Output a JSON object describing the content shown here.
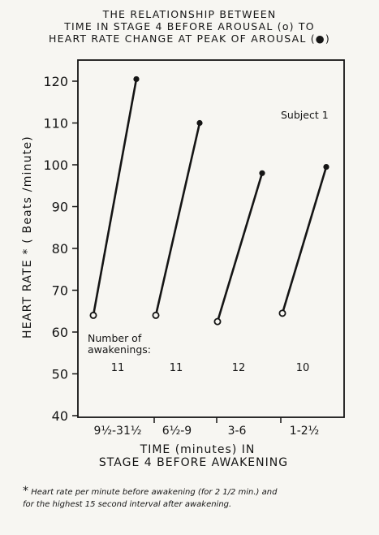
{
  "chart_data": {
    "type": "line",
    "title": "THE RELATIONSHIP BETWEEN TIME IN STAGE 4 BEFORE AROUSAL (o) TO HEART RATE CHANGE AT PEAK OF AROUSAL (●)",
    "title_lines": [
      "THE RELATIONSHIP BETWEEN",
      "TIME IN STAGE 4 BEFORE AROUSAL (o) TO",
      "HEART RATE CHANGE AT PEAK OF AROUSAL (●)"
    ],
    "xlabel_lines": [
      "TIME (minutes) IN",
      "STAGE 4 BEFORE AWAKENING"
    ],
    "ylabel": "HEART RATE * ( Beats /minute)",
    "ylim": [
      40,
      125
    ],
    "yticks": [
      40,
      50,
      60,
      70,
      80,
      90,
      100,
      110,
      120
    ],
    "categories": [
      "9½-31½",
      "6½-9",
      "3-6",
      "1-2½"
    ],
    "series": [
      {
        "name": "before arousal (o)",
        "marker": "open-circle",
        "values": [
          64,
          64,
          62.5,
          64.5
        ]
      },
      {
        "name": "peak of arousal (●)",
        "marker": "filled-circle",
        "values": [
          120.5,
          110,
          98,
          99.5
        ]
      }
    ],
    "subject_label": "Subject 1",
    "awakenings_label_lines": [
      "Number of",
      "awakenings:"
    ],
    "awakenings": [
      "11",
      "11",
      "12",
      "10"
    ],
    "grid": false,
    "legend": "none",
    "footnote_lines": [
      "Heart rate per minute before awakening (for 2 1/2 min.) and",
      "for the highest 15 second interval after awakening."
    ],
    "footnote_marker": "*",
    "colors": {
      "ink": "#151515",
      "paper": "#f7f6f2"
    }
  }
}
